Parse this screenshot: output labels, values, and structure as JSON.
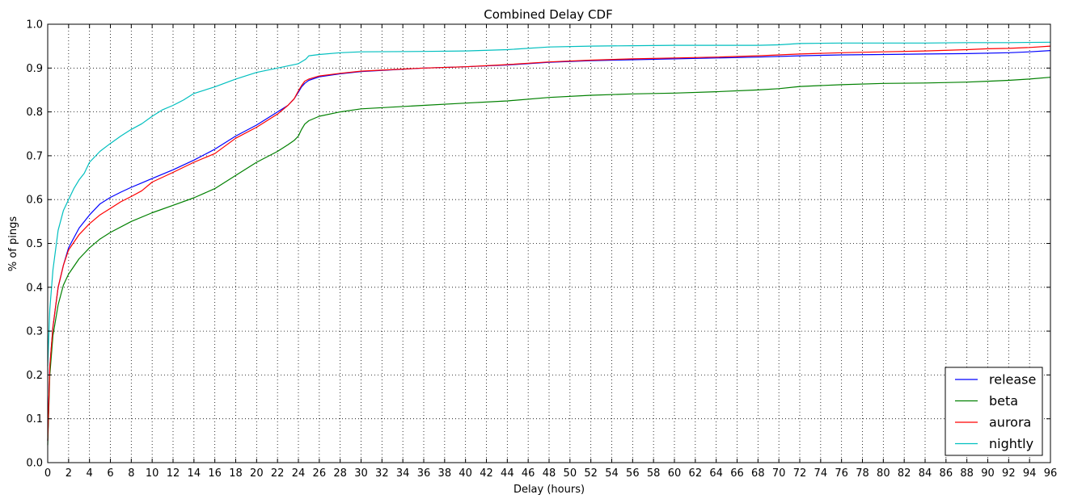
{
  "chart_data": {
    "type": "line",
    "title": "Combined Delay CDF",
    "xlabel": "Delay (hours)",
    "ylabel": "% of pings",
    "xlim": [
      0,
      96
    ],
    "ylim": [
      0.0,
      1.0
    ],
    "xticks": [
      "0",
      "2",
      "4",
      "6",
      "8",
      "10",
      "12",
      "14",
      "16",
      "18",
      "20",
      "22",
      "24",
      "26",
      "28",
      "30",
      "32",
      "34",
      "36",
      "38",
      "40",
      "42",
      "44",
      "46",
      "48",
      "50",
      "52",
      "54",
      "56",
      "58",
      "60",
      "62",
      "64",
      "66",
      "68",
      "70",
      "72",
      "74",
      "76",
      "78",
      "80",
      "82",
      "84",
      "86",
      "88",
      "90",
      "92",
      "94",
      "96"
    ],
    "yticks": [
      "0.0",
      "0.1",
      "0.2",
      "0.3",
      "0.4",
      "0.5",
      "0.6",
      "0.7",
      "0.8",
      "0.9",
      "1.0"
    ],
    "grid": true,
    "legend_position": "bottom-right",
    "series": [
      {
        "name": "release",
        "color": "#0000ff",
        "x": [
          0,
          0.2,
          0.5,
          1,
          1.5,
          2,
          3,
          4,
          5,
          6,
          7,
          8,
          9,
          10,
          12,
          14,
          16,
          18,
          20,
          22,
          23,
          23.6,
          24,
          24.3,
          24.6,
          25,
          26,
          28,
          30,
          36,
          40,
          44,
          48,
          52,
          56,
          60,
          64,
          68,
          72,
          76,
          80,
          84,
          88,
          92,
          94,
          96
        ],
        "y": [
          0.05,
          0.22,
          0.31,
          0.4,
          0.45,
          0.49,
          0.535,
          0.565,
          0.59,
          0.605,
          0.617,
          0.628,
          0.638,
          0.648,
          0.668,
          0.69,
          0.715,
          0.745,
          0.77,
          0.8,
          0.815,
          0.83,
          0.845,
          0.857,
          0.865,
          0.872,
          0.88,
          0.887,
          0.892,
          0.9,
          0.903,
          0.907,
          0.913,
          0.917,
          0.919,
          0.921,
          0.923,
          0.925,
          0.928,
          0.93,
          0.931,
          0.932,
          0.933,
          0.935,
          0.937,
          0.94
        ]
      },
      {
        "name": "beta",
        "color": "#008000",
        "x": [
          0,
          0.2,
          0.5,
          1,
          1.5,
          2,
          3,
          4,
          5,
          6,
          8,
          10,
          12,
          14,
          16,
          18,
          20,
          22,
          23,
          23.6,
          24,
          24.3,
          24.6,
          25,
          26,
          28,
          30,
          36,
          40,
          44,
          48,
          52,
          56,
          60,
          64,
          68,
          70,
          72,
          76,
          80,
          84,
          88,
          90,
          92,
          94,
          96
        ],
        "y": [
          0.04,
          0.2,
          0.29,
          0.36,
          0.405,
          0.43,
          0.465,
          0.49,
          0.51,
          0.525,
          0.55,
          0.57,
          0.587,
          0.604,
          0.625,
          0.655,
          0.685,
          0.71,
          0.725,
          0.735,
          0.745,
          0.76,
          0.772,
          0.78,
          0.79,
          0.8,
          0.807,
          0.815,
          0.82,
          0.825,
          0.833,
          0.838,
          0.841,
          0.843,
          0.846,
          0.85,
          0.853,
          0.858,
          0.862,
          0.865,
          0.866,
          0.868,
          0.87,
          0.872,
          0.875,
          0.879
        ]
      },
      {
        "name": "aurora",
        "color": "#ff0000",
        "x": [
          0,
          0.2,
          0.5,
          1,
          1.5,
          2,
          3,
          4,
          5,
          6,
          7,
          8,
          9,
          10,
          12,
          14,
          16,
          18,
          20,
          22,
          23,
          23.6,
          24,
          24.3,
          24.6,
          25,
          26,
          28,
          30,
          36,
          40,
          44,
          48,
          52,
          56,
          60,
          64,
          68,
          72,
          76,
          80,
          84,
          88,
          90,
          92,
          94,
          96
        ],
        "y": [
          0.05,
          0.22,
          0.31,
          0.4,
          0.45,
          0.485,
          0.52,
          0.545,
          0.565,
          0.58,
          0.595,
          0.607,
          0.62,
          0.64,
          0.662,
          0.685,
          0.705,
          0.74,
          0.765,
          0.795,
          0.815,
          0.83,
          0.848,
          0.86,
          0.87,
          0.875,
          0.882,
          0.888,
          0.893,
          0.9,
          0.903,
          0.908,
          0.914,
          0.918,
          0.921,
          0.923,
          0.925,
          0.928,
          0.932,
          0.935,
          0.937,
          0.939,
          0.942,
          0.944,
          0.945,
          0.947,
          0.95
        ]
      },
      {
        "name": "nightly",
        "color": "#00bfbf",
        "x": [
          0,
          0.2,
          0.5,
          1,
          1.5,
          2,
          2.5,
          3,
          3.5,
          4,
          5,
          6,
          7,
          8,
          9,
          10,
          11,
          12,
          13,
          14,
          16,
          18,
          20,
          22,
          24,
          24.7,
          25,
          26,
          28,
          30,
          36,
          40,
          44,
          48,
          52,
          56,
          60,
          64,
          68,
          70,
          72,
          76,
          80,
          84,
          88,
          92,
          96
        ],
        "y": [
          0.22,
          0.35,
          0.44,
          0.53,
          0.575,
          0.6,
          0.625,
          0.645,
          0.66,
          0.685,
          0.71,
          0.728,
          0.745,
          0.76,
          0.773,
          0.79,
          0.805,
          0.815,
          0.827,
          0.842,
          0.857,
          0.875,
          0.89,
          0.9,
          0.91,
          0.92,
          0.928,
          0.931,
          0.935,
          0.937,
          0.938,
          0.939,
          0.942,
          0.948,
          0.95,
          0.951,
          0.952,
          0.952,
          0.952,
          0.953,
          0.956,
          0.957,
          0.957,
          0.957,
          0.958,
          0.958,
          0.959
        ]
      }
    ]
  }
}
